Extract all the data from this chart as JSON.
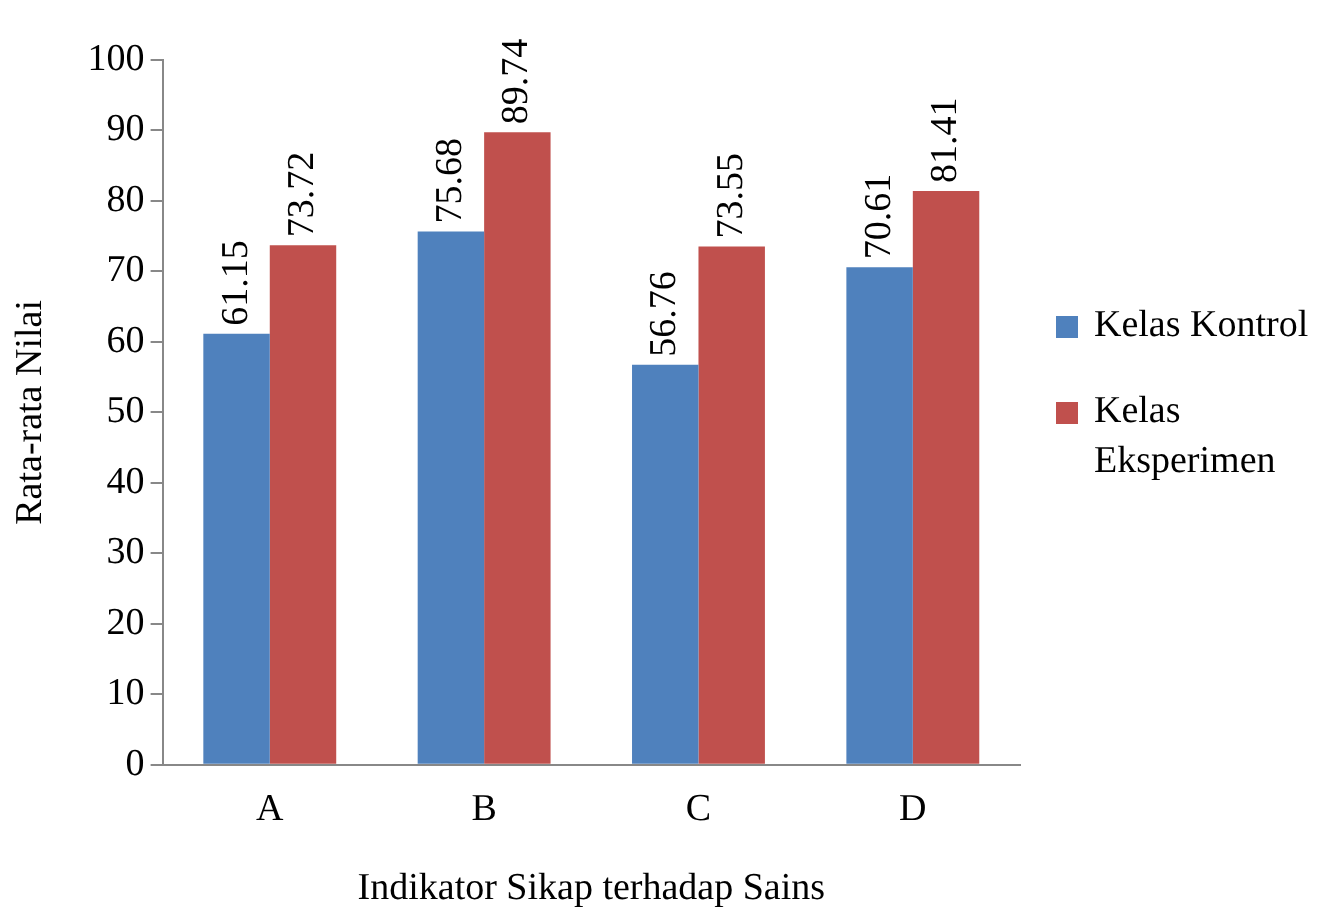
{
  "chart_data": {
    "type": "bar",
    "xlabel": "Indikator Sikap terhadap Sains",
    "ylabel": "Rata-rata Nilai",
    "categories": [
      "A",
      "B",
      "C",
      "D"
    ],
    "series": [
      {
        "name": "Kelas Kontrol",
        "color": "#4f81bd",
        "values": [
          61.15,
          75.68,
          56.76,
          70.61
        ]
      },
      {
        "name": "Kelas Eksperimen",
        "color": "#c0504d",
        "values": [
          73.72,
          89.74,
          73.55,
          81.41
        ]
      }
    ],
    "ylim": [
      0,
      100
    ],
    "yticks": [
      0,
      10,
      20,
      30,
      40,
      50,
      60,
      70,
      80,
      90,
      100
    ],
    "grid": false,
    "legend": "right",
    "data_labels": true
  }
}
